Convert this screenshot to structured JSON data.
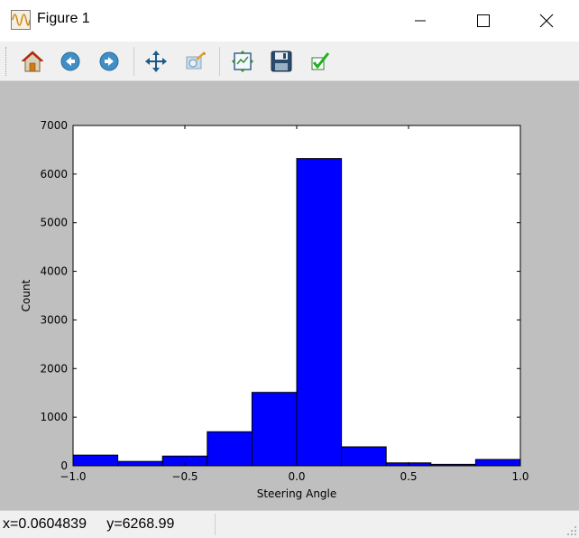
{
  "window": {
    "title": "Figure 1",
    "app_icon": "matplotlib-figure-icon",
    "controls": [
      "minimize-icon",
      "maximize-icon",
      "close-icon"
    ]
  },
  "toolbar": {
    "buttons": [
      {
        "name": "home",
        "icon": "home-icon"
      },
      {
        "name": "back",
        "icon": "back-arrow-icon"
      },
      {
        "name": "forward",
        "icon": "forward-arrow-icon"
      },
      {
        "name": "pan",
        "icon": "move-arrows-icon"
      },
      {
        "name": "zoom",
        "icon": "zoom-rect-icon"
      },
      {
        "name": "subplots",
        "icon": "subplots-config-icon"
      },
      {
        "name": "save",
        "icon": "floppy-disk-icon"
      },
      {
        "name": "edit",
        "icon": "checkmark-icon"
      }
    ]
  },
  "chart_data": {
    "type": "bar",
    "title": "",
    "xlabel": "Steering Angle",
    "ylabel": "Count",
    "xlim": [
      -1.0,
      1.0
    ],
    "ylim": [
      0,
      7000
    ],
    "xticks": [
      "−1.0",
      "−0.5",
      "0.0",
      "0.5",
      "1.0"
    ],
    "xtick_values": [
      -1.0,
      -0.5,
      0.0,
      0.5,
      1.0
    ],
    "yticks": [
      "0",
      "1000",
      "2000",
      "3000",
      "4000",
      "5000",
      "6000",
      "7000"
    ],
    "ytick_values": [
      0,
      1000,
      2000,
      3000,
      4000,
      5000,
      6000,
      7000
    ],
    "bin_edges": [
      -1.0,
      -0.8,
      -0.6,
      -0.4,
      -0.2,
      0.0,
      0.2,
      0.4,
      0.6,
      0.8,
      1.0
    ],
    "counts": [
      220,
      90,
      200,
      700,
      1510,
      6320,
      390,
      60,
      30,
      130
    ],
    "bar_color": "#0000ff",
    "edge_color": "#000000",
    "grid": false
  },
  "status": {
    "x_readout": "x=0.0604839",
    "y_readout": "y=6268.99"
  }
}
